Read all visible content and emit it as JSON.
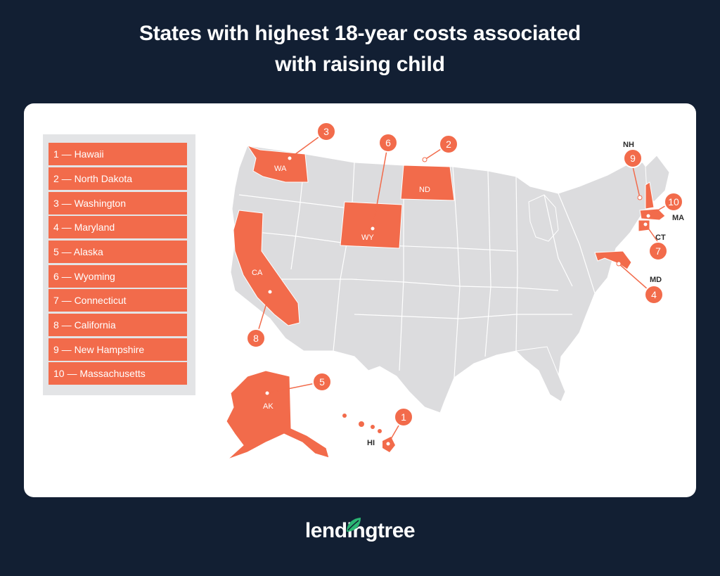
{
  "title": {
    "line1": "States with highest 18-year costs associated",
    "line2": "with raising child"
  },
  "legend": [
    "1 — Hawaii",
    "2 — North Dakota",
    "3 — Washington",
    "4 — Maryland",
    "5 — Alaska",
    "6 — Wyoming",
    "7 — Connecticut",
    "8 — California",
    "9 — New Hampshire",
    "10 — Massachusetts"
  ],
  "states": {
    "wa": {
      "label": "WA",
      "rank": "3"
    },
    "nd": {
      "label": "ND",
      "rank": "2"
    },
    "wy": {
      "label": "WY",
      "rank": "6"
    },
    "ca": {
      "label": "CA",
      "rank": "8"
    },
    "ak": {
      "label": "AK",
      "rank": "5"
    },
    "hi": {
      "label": "HI",
      "rank": "1"
    },
    "md": {
      "label": "MD",
      "rank": "4"
    },
    "nh": {
      "label": "NH",
      "rank": "9"
    },
    "ma": {
      "label": "MA",
      "rank": "10"
    },
    "ct": {
      "label": "CT",
      "rank": "7"
    }
  },
  "colors": {
    "background": "#121f33",
    "highlight": "#f26b4b",
    "base_state": "#dcdcde",
    "card": "#ffffff"
  },
  "logo": {
    "text": "lendingtree",
    "icon": "leaf-icon"
  }
}
